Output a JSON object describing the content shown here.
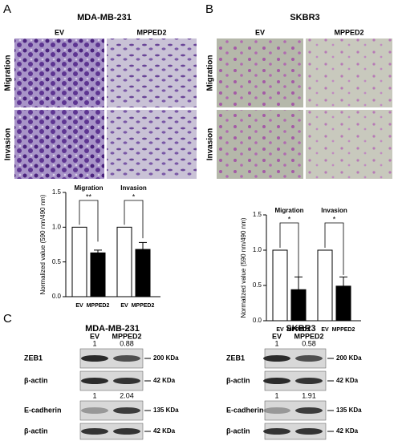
{
  "panels": {
    "a": "A",
    "b": "B",
    "c": "C"
  },
  "micrographs": [
    {
      "title": "MDA-MB-231",
      "columns": [
        "EV",
        "MPPED2"
      ],
      "rows": [
        "Migration",
        "Invasion"
      ]
    },
    {
      "title": "SKBR3",
      "columns": [
        "EV",
        "MPPED2"
      ],
      "rows": [
        "Migration",
        "Invasion"
      ]
    }
  ],
  "chart_data": [
    {
      "type": "bar",
      "y_label": "Normalized value (590 nm/490 nm)",
      "categories": [
        "EV",
        "MPPED2",
        "EV",
        "MPPED2"
      ],
      "values": [
        1,
        0.63,
        1,
        0.68
      ],
      "errors": [
        null,
        0.04,
        null,
        0.1
      ],
      "colors": [
        "#ffffff",
        "#000000",
        "#ffffff",
        "#000000"
      ],
      "groups": [
        "Migration",
        "Invasion"
      ],
      "significance": [
        "**",
        "*"
      ],
      "ylim": [
        0,
        1.5
      ],
      "yticks": [
        {
          "value": 0,
          "label": "0.0"
        },
        0.5,
        {
          "value": 1,
          "label": "1.0"
        },
        1.5
      ]
    },
    {
      "type": "bar",
      "y_label": "Normalized value (590 nm/490 nm)",
      "categories": [
        "EV",
        "MPPED2",
        "EV",
        "MPPED2"
      ],
      "values": [
        1,
        0.44,
        1,
        0.49
      ],
      "errors": [
        null,
        0.18,
        null,
        0.13
      ],
      "colors": [
        "#ffffff",
        "#000000",
        "#ffffff",
        "#000000"
      ],
      "groups": [
        "Migration",
        "Invasion"
      ],
      "significance": [
        "*",
        "*"
      ],
      "ylim": [
        0,
        1.5
      ],
      "yticks": [
        {
          "value": 0,
          "label": "0.0"
        },
        0.5,
        {
          "value": 1,
          "label": "1.0"
        },
        1.5
      ]
    }
  ],
  "blots": [
    {
      "title": "MDA-MB-231",
      "lanes": [
        "EV",
        "MPPED2"
      ],
      "rows": [
        {
          "label": "ZEB1",
          "size": "200 KDa",
          "ratios": [
            1,
            0.88
          ]
        },
        {
          "label": "β-actin",
          "size": "42 KDa"
        },
        {
          "label": "E-cadherin",
          "size": "135 KDa",
          "ratios": [
            1,
            2.04
          ]
        },
        {
          "label": "β-actin",
          "size": "42 KDa"
        }
      ]
    },
    {
      "title": "SKBR3",
      "lanes": [
        "EV",
        "MPPED2"
      ],
      "rows": [
        {
          "label": "ZEB1",
          "size": "200 KDa",
          "ratios": [
            1,
            0.58
          ]
        },
        {
          "label": "β-actin",
          "size": "42 KDa"
        },
        {
          "label": "E-cadherin",
          "size": "135 KDa",
          "ratios": [
            1,
            1.91
          ]
        },
        {
          "label": "β-actin",
          "size": "42 KDa"
        }
      ]
    }
  ]
}
